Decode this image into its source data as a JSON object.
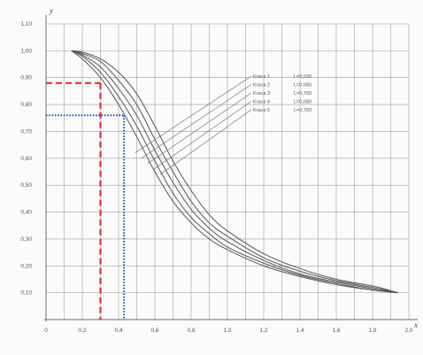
{
  "chart_data": {
    "type": "line",
    "title": "",
    "xlabel": "x",
    "ylabel": "y",
    "xlim": [
      0,
      2.0
    ],
    "ylim": [
      0,
      1.1
    ],
    "x_ticks": [
      "0",
      "0.1",
      "0.2",
      "0.3",
      "0.4",
      "0.5",
      "0.6",
      "0.7",
      "0.8",
      "0.9",
      "1.0",
      "1.1",
      "1.2",
      "1.3",
      "1.4",
      "1.5",
      "1.6",
      "1.7",
      "1.8",
      "1.9",
      "2.0"
    ],
    "x_tick_labels": [
      {
        "x": 0.0,
        "label": "0"
      },
      {
        "x": 0.2,
        "label": "0,2"
      },
      {
        "x": 0.4,
        "label": "0,4"
      },
      {
        "x": 0.6,
        "label": "0,6"
      },
      {
        "x": 0.8,
        "label": "0,8"
      },
      {
        "x": 1.0,
        "label": "1,0"
      },
      {
        "x": 1.2,
        "label": "1,2"
      },
      {
        "x": 1.4,
        "label": "1,4"
      },
      {
        "x": 1.6,
        "label": "1,6"
      },
      {
        "x": 1.8,
        "label": "1,8"
      },
      {
        "x": 2.0,
        "label": "2,0"
      }
    ],
    "y_tick_labels": [
      {
        "y": 1.1,
        "label": "1,10"
      },
      {
        "y": 1.0,
        "label": "1,00"
      },
      {
        "y": 0.9,
        "label": "0,90"
      },
      {
        "y": 0.8,
        "label": "0,80"
      },
      {
        "y": 0.7,
        "label": "0,70"
      },
      {
        "y": 0.6,
        "label": "0,60"
      },
      {
        "y": 0.5,
        "label": "0,50"
      },
      {
        "y": 0.4,
        "label": "0,40"
      },
      {
        "y": 0.3,
        "label": "0,30"
      },
      {
        "y": 0.2,
        "label": "0,20"
      },
      {
        "y": 0.1,
        "label": "0,10"
      }
    ],
    "grid": true,
    "series": [
      {
        "name": "Kraca 1",
        "label_text": "L=0,530",
        "color": "#555555",
        "x": [
          0.14,
          0.2,
          0.3,
          0.4,
          0.5,
          0.6,
          0.7,
          0.8,
          0.9,
          1.0,
          1.2,
          1.4,
          1.6,
          1.8,
          1.94
        ],
        "y": [
          1.0,
          0.97,
          0.9,
          0.8,
          0.68,
          0.55,
          0.44,
          0.36,
          0.3,
          0.26,
          0.2,
          0.16,
          0.13,
          0.11,
          0.1
        ]
      },
      {
        "name": "Kraca 2",
        "label_text": "L=0,580",
        "color": "#555555",
        "x": [
          0.14,
          0.2,
          0.3,
          0.4,
          0.5,
          0.6,
          0.7,
          0.8,
          0.9,
          1.0,
          1.2,
          1.4,
          1.6,
          1.8,
          1.94
        ],
        "y": [
          1.0,
          0.98,
          0.92,
          0.83,
          0.72,
          0.59,
          0.47,
          0.38,
          0.32,
          0.27,
          0.21,
          0.165,
          0.135,
          0.11,
          0.1
        ]
      },
      {
        "name": "Kraca 3",
        "label_text": "L=0,700",
        "color": "#555555",
        "x": [
          0.14,
          0.2,
          0.3,
          0.4,
          0.5,
          0.6,
          0.7,
          0.8,
          0.9,
          1.0,
          1.2,
          1.4,
          1.6,
          1.8,
          1.94
        ],
        "y": [
          1.0,
          0.985,
          0.94,
          0.86,
          0.76,
          0.63,
          0.51,
          0.41,
          0.34,
          0.29,
          0.22,
          0.17,
          0.14,
          0.115,
          0.1
        ]
      },
      {
        "name": "Kraca 4",
        "label_text": "L=0,680",
        "color": "#555555",
        "x": [
          0.14,
          0.2,
          0.3,
          0.4,
          0.5,
          0.6,
          0.7,
          0.8,
          0.9,
          1.0,
          1.2,
          1.4,
          1.6,
          1.8,
          1.94
        ],
        "y": [
          1.0,
          0.99,
          0.96,
          0.89,
          0.8,
          0.67,
          0.55,
          0.44,
          0.36,
          0.31,
          0.23,
          0.18,
          0.145,
          0.12,
          0.1
        ]
      },
      {
        "name": "Kraca 5",
        "label_text": "L=0,750",
        "color": "#555555",
        "x": [
          0.14,
          0.2,
          0.3,
          0.4,
          0.5,
          0.6,
          0.7,
          0.8,
          0.9,
          1.0,
          1.2,
          1.4,
          1.6,
          1.8,
          1.94
        ],
        "y": [
          1.0,
          0.995,
          0.97,
          0.92,
          0.84,
          0.72,
          0.59,
          0.48,
          0.39,
          0.33,
          0.245,
          0.19,
          0.15,
          0.125,
          0.1
        ]
      }
    ],
    "reference_lines": [
      {
        "name": "red-dashed",
        "color": "#d9343c",
        "style": "dashed",
        "x": 0.3,
        "y": 0.88
      },
      {
        "name": "blue-dotted",
        "color": "#2a3fb8",
        "style": "dotted",
        "x": 0.43,
        "y": 0.76
      }
    ]
  }
}
